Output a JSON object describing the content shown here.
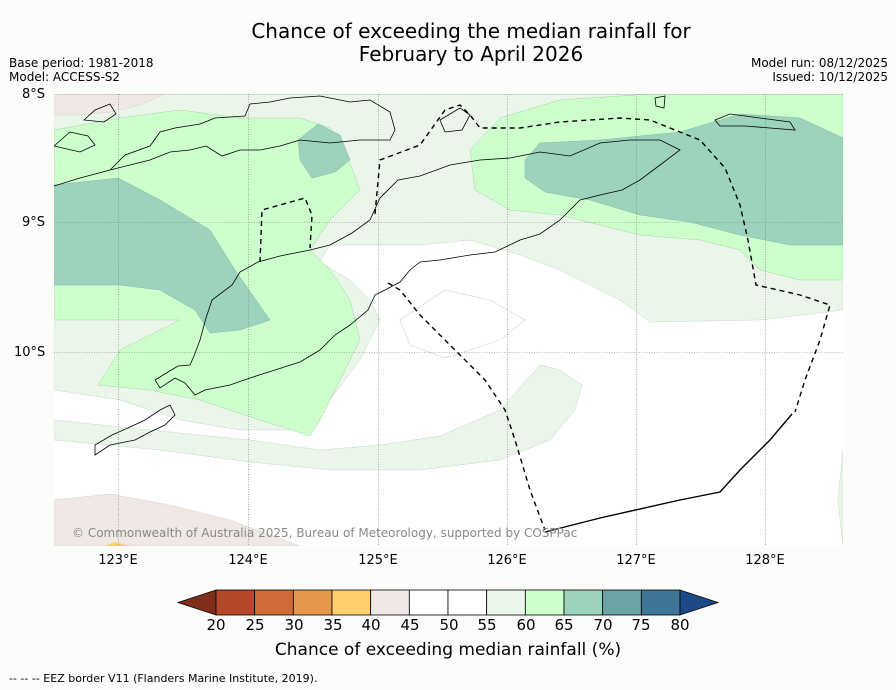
{
  "title_line1": "Chance of exceeding the median rainfall for",
  "title_line2": "February to April 2026",
  "base_period": "Base period: 1981-2018",
  "model": "Model: ACCESS-S2",
  "model_run": "Model run: 08/12/2025",
  "issued": "Issued: 10/12/2025",
  "latitudes": [
    "8°S",
    "9°S",
    "10°S"
  ],
  "longitudes": [
    "123°E",
    "124°E",
    "125°E",
    "126°E",
    "127°E",
    "128°E"
  ],
  "copyright": "© Commonwealth of Australia 2025, Bureau of Meteorology, supported by COSPPac",
  "colorbar": {
    "label": "Chance of exceeding median rainfall (%)",
    "ticks": [
      "20",
      "25",
      "30",
      "35",
      "40",
      "45",
      "50",
      "55",
      "60",
      "65",
      "70",
      "75",
      "80"
    ],
    "colors": [
      "#7e2e1a",
      "#b5482a",
      "#d06b37",
      "#e4984b",
      "#fece6d",
      "#efe8e5",
      "#ffffff",
      "#ffffff",
      "#eaf6ea",
      "#ccffcc",
      "#9cd3bd",
      "#6ca3a4",
      "#3f7595",
      "#1d4a86"
    ]
  },
  "footnote": "--  --  -- EEZ border V11 (Flanders Marine Institute, 2019)."
}
